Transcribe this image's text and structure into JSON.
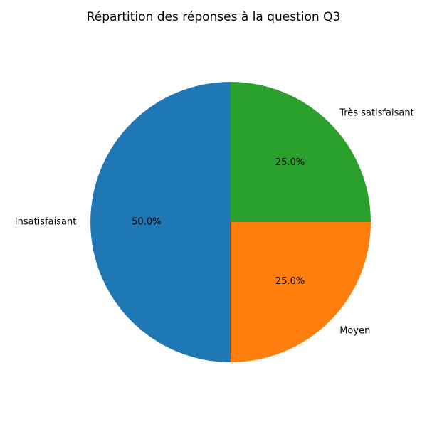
{
  "chart_data": {
    "type": "pie",
    "title": "Répartition des réponses à la question Q3",
    "slices": [
      {
        "label": "Insatisfaisant",
        "value": 50.0,
        "pct_label": "50.0%",
        "color": "#1f77b4"
      },
      {
        "label": "Moyen",
        "value": 25.0,
        "pct_label": "25.0%",
        "color": "#ff7f0e"
      },
      {
        "label": "Très satisfaisant",
        "value": 25.0,
        "pct_label": "25.0%",
        "color": "#2ca02c"
      }
    ],
    "start_angle_deg": 90,
    "direction": "counterclockwise"
  }
}
